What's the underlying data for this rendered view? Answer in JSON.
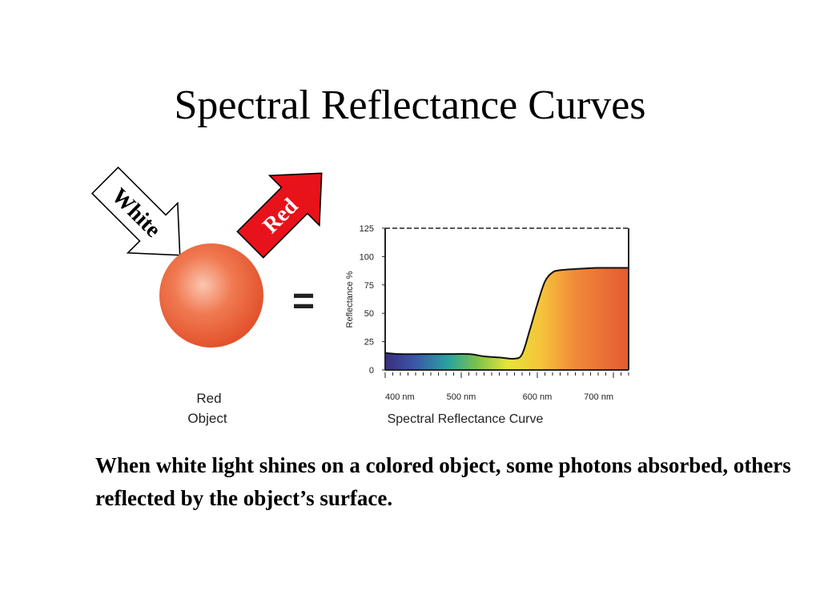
{
  "slide": {
    "title": "Spectral Reflectance Curves",
    "caption": "When white light shines on a colored object, some photons absorbed, others reflected by the object’s surface."
  },
  "figure": {
    "incoming_label": "White",
    "outgoing_label": "Red",
    "object_label_line1": "Red",
    "object_label_line2": "Object",
    "equals": "=",
    "object_color": "#e8603a",
    "red_arrow_color": "#e8121a"
  },
  "chart_data": {
    "type": "area",
    "title": "Spectral Reflectance Curve",
    "ylabel": "Reflectance %",
    "xlabel": "",
    "x_tick_labels": [
      "400 nm",
      "500 nm",
      "600 nm",
      "700 nm"
    ],
    "x_ticks": [
      400,
      500,
      600,
      700
    ],
    "y_ticks": [
      0,
      25,
      50,
      75,
      100,
      125
    ],
    "xlim": [
      400,
      720
    ],
    "ylim": [
      0,
      125
    ],
    "grid": false,
    "series": [
      {
        "x": [
          400,
          420,
          450,
          480,
          510,
          530,
          550,
          570,
          580,
          590,
          600,
          610,
          620,
          630,
          650,
          680,
          720
        ],
        "y": [
          15,
          14,
          14,
          14,
          14,
          12,
          11,
          10,
          14,
          35,
          58,
          78,
          86,
          88,
          89,
          90,
          90
        ]
      }
    ]
  }
}
